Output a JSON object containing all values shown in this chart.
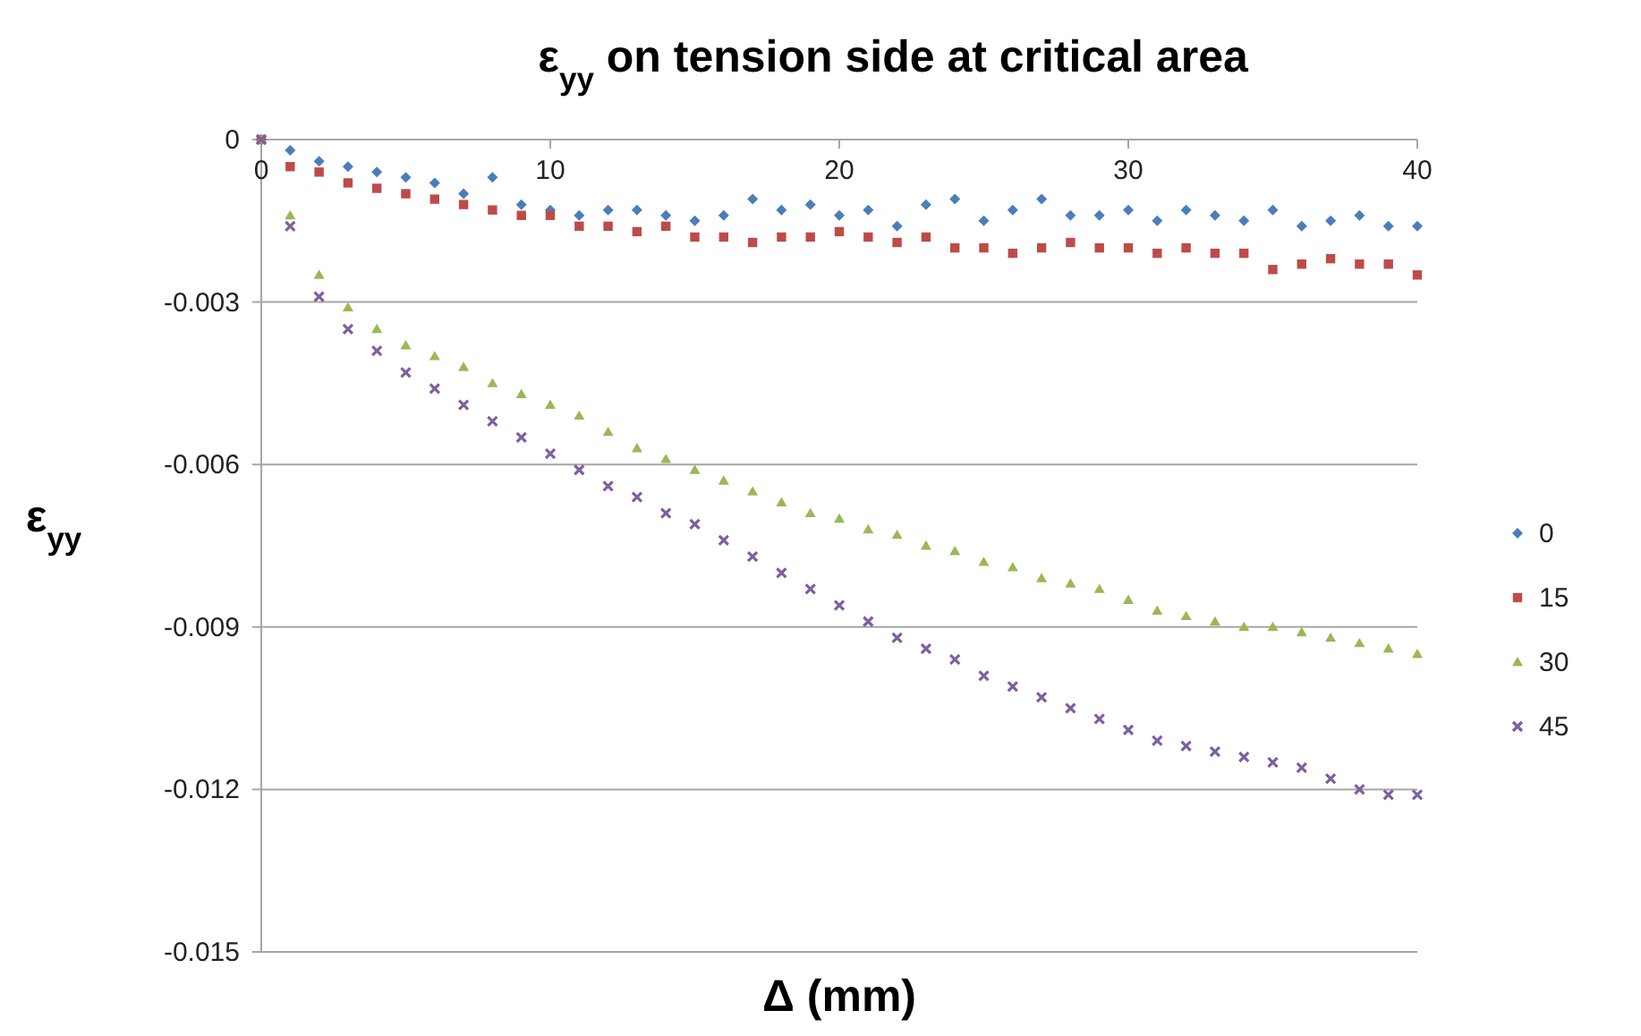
{
  "chart_data": {
    "type": "scatter",
    "title": "ε$_{yy}$ on tension side at critical area",
    "xlabel": "Δ (mm)",
    "ylabel": "ε$_{yy}$",
    "x": [
      0,
      1,
      2,
      3,
      4,
      5,
      6,
      7,
      8,
      9,
      10,
      11,
      12,
      13,
      14,
      15,
      16,
      17,
      18,
      19,
      20,
      21,
      22,
      23,
      24,
      25,
      26,
      27,
      28,
      29,
      30,
      31,
      32,
      33,
      34,
      35,
      36,
      37,
      38,
      39,
      40
    ],
    "xlim": [
      0,
      40
    ],
    "xticks": [
      0,
      10,
      20,
      30,
      40
    ],
    "ylim": [
      -0.015,
      0
    ],
    "yticks": [
      -0.015,
      -0.012,
      -0.009,
      -0.006,
      -0.003,
      0
    ],
    "grid": "y",
    "legend": "right",
    "series": [
      {
        "name": "0",
        "color": "#4a7ebb",
        "marker": "diamond",
        "values": [
          0,
          -0.0002,
          -0.0004,
          -0.0005,
          -0.0006,
          -0.0007,
          -0.0008,
          -0.001,
          -0.0007,
          -0.0012,
          -0.0013,
          -0.0014,
          -0.0013,
          -0.0013,
          -0.0014,
          -0.0015,
          -0.0014,
          -0.0011,
          -0.0013,
          -0.0012,
          -0.0014,
          -0.0013,
          -0.0016,
          -0.0012,
          -0.0011,
          -0.0015,
          -0.0013,
          -0.0011,
          -0.0014,
          -0.0014,
          -0.0013,
          -0.0015,
          -0.0013,
          -0.0014,
          -0.0015,
          -0.0013,
          -0.0016,
          -0.0015,
          -0.0014,
          -0.0016,
          -0.0016
        ]
      },
      {
        "name": "15",
        "color": "#be4b48",
        "marker": "square",
        "values": [
          0,
          -0.0005,
          -0.0006,
          -0.0008,
          -0.0009,
          -0.001,
          -0.0011,
          -0.0012,
          -0.0013,
          -0.0014,
          -0.0014,
          -0.0016,
          -0.0016,
          -0.0017,
          -0.0016,
          -0.0018,
          -0.0018,
          -0.0019,
          -0.0018,
          -0.0018,
          -0.0017,
          -0.0018,
          -0.0019,
          -0.0018,
          -0.002,
          -0.002,
          -0.0021,
          -0.002,
          -0.0019,
          -0.002,
          -0.002,
          -0.0021,
          -0.002,
          -0.0021,
          -0.0021,
          -0.0024,
          -0.0023,
          -0.0022,
          -0.0023,
          -0.0023,
          -0.0025
        ]
      },
      {
        "name": "30",
        "color": "#98b954",
        "marker": "triangle",
        "values": [
          0,
          -0.0014,
          -0.0025,
          -0.0031,
          -0.0035,
          -0.0038,
          -0.004,
          -0.0042,
          -0.0045,
          -0.0047,
          -0.0049,
          -0.0051,
          -0.0054,
          -0.0057,
          -0.0059,
          -0.0061,
          -0.0063,
          -0.0065,
          -0.0067,
          -0.0069,
          -0.007,
          -0.0072,
          -0.0073,
          -0.0075,
          -0.0076,
          -0.0078,
          -0.0079,
          -0.0081,
          -0.0082,
          -0.0083,
          -0.0085,
          -0.0087,
          -0.0088,
          -0.0089,
          -0.009,
          -0.009,
          -0.0091,
          -0.0092,
          -0.0093,
          -0.0094,
          -0.0095
        ]
      },
      {
        "name": "45",
        "color": "#7d60a0",
        "marker": "cross",
        "values": [
          0,
          -0.0016,
          -0.0029,
          -0.0035,
          -0.0039,
          -0.0043,
          -0.0046,
          -0.0049,
          -0.0052,
          -0.0055,
          -0.0058,
          -0.0061,
          -0.0064,
          -0.0066,
          -0.0069,
          -0.0071,
          -0.0074,
          -0.0077,
          -0.008,
          -0.0083,
          -0.0086,
          -0.0089,
          -0.0092,
          -0.0094,
          -0.0096,
          -0.0099,
          -0.0101,
          -0.0103,
          -0.0105,
          -0.0107,
          -0.0109,
          -0.0111,
          -0.0112,
          -0.0113,
          -0.0114,
          -0.0115,
          -0.0116,
          -0.0118,
          -0.012,
          -0.0121,
          -0.0121
        ]
      }
    ]
  }
}
